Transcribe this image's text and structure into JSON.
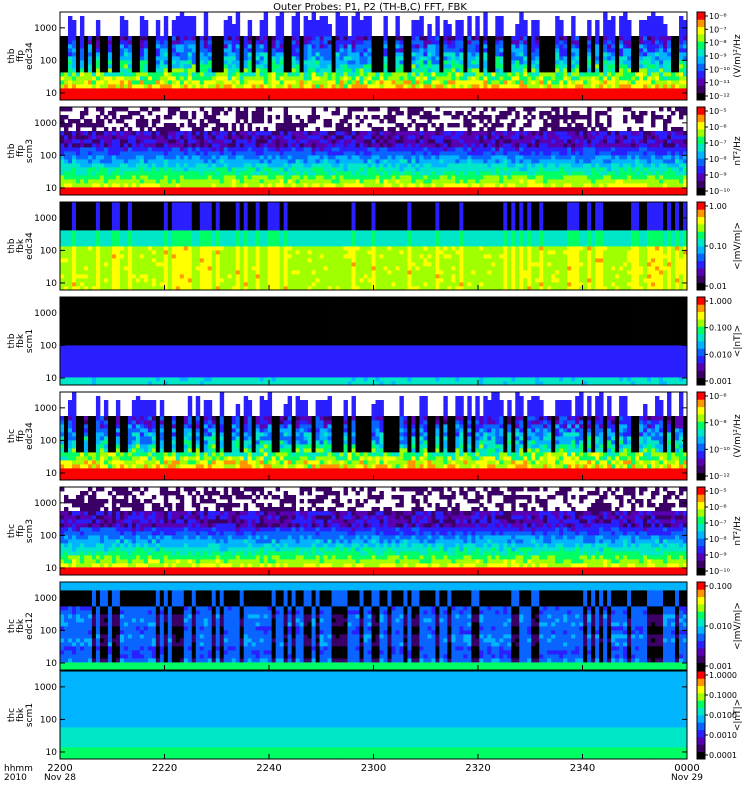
{
  "chart_data": {
    "type": "heatmap",
    "title": "Outer Probes: P1, P2 (TH-B,C) FFT, FBK",
    "x_axis": {
      "row_labels": [
        "hhmm",
        "2010"
      ],
      "ticks": [
        "2200",
        "2220",
        "2240",
        "2300",
        "2320",
        "2340",
        "0000"
      ],
      "date_labels": [
        {
          "at": "2200",
          "text": "Nov 28"
        },
        {
          "at": "0000",
          "text": "Nov 29"
        }
      ]
    },
    "panels": [
      {
        "ylabel": [
          "thb",
          "ffp",
          "edc34"
        ],
        "yscale": "log",
        "yticks": [
          "10",
          "100",
          "1000"
        ],
        "colorbar": {
          "scale": "log",
          "ticks": [
            "10⁻¹²",
            "10⁻¹¹",
            "10⁻¹⁰",
            "10⁻⁹",
            "10⁻⁸",
            "10⁻⁷",
            "10⁻⁶"
          ],
          "label": "(V/m)²/Hz"
        },
        "style": "ffp_edc"
      },
      {
        "ylabel": [
          "thb",
          "ffp",
          "scm3"
        ],
        "yscale": "log",
        "yticks": [
          "10",
          "100",
          "1000"
        ],
        "colorbar": {
          "scale": "log",
          "ticks": [
            "10⁻¹⁰",
            "10⁻⁹",
            "10⁻⁸",
            "10⁻⁷",
            "10⁻⁶",
            "10⁻⁵"
          ],
          "label": "nT²/Hz"
        },
        "style": "ffp_scm"
      },
      {
        "ylabel": [
          "thb",
          "fbk",
          "edc34"
        ],
        "yscale": "log",
        "yticks": [
          "10",
          "100",
          "1000"
        ],
        "colorbar": {
          "scale": "log",
          "ticks": [
            "0.01",
            "0.10",
            "1.00"
          ],
          "label": "<|mV/m|>"
        },
        "style": "fbk_edc_b"
      },
      {
        "ylabel": [
          "thb",
          "fbk",
          "scm1"
        ],
        "yscale": "log",
        "yticks": [
          "10",
          "100",
          "1000"
        ],
        "colorbar": {
          "scale": "log",
          "ticks": [
            "0.001",
            "0.010",
            "0.100",
            "1.000"
          ],
          "label": "<|nT|>"
        },
        "style": "fbk_scm_b"
      },
      {
        "ylabel": [
          "thc",
          "ffp",
          "edc34"
        ],
        "yscale": "log",
        "yticks": [
          "10",
          "100",
          "1000"
        ],
        "colorbar": {
          "scale": "log",
          "ticks": [
            "10⁻¹²",
            "10⁻¹⁰",
            "10⁻⁸",
            "10⁻⁶"
          ],
          "label": "(V/m)²/Hz"
        },
        "style": "ffp_edc"
      },
      {
        "ylabel": [
          "thc",
          "ffp",
          "scm3"
        ],
        "yscale": "log",
        "yticks": [
          "10",
          "100",
          "1000"
        ],
        "colorbar": {
          "scale": "log",
          "ticks": [
            "10⁻¹⁰",
            "10⁻⁹",
            "10⁻⁸",
            "10⁻⁷",
            "10⁻⁶",
            "10⁻⁵"
          ],
          "label": "nT²/Hz"
        },
        "style": "ffp_scm"
      },
      {
        "ylabel": [
          "thc",
          "fbk",
          "edc12"
        ],
        "yscale": "log",
        "yticks": [
          "10",
          "100",
          "1000"
        ],
        "colorbar": {
          "scale": "log",
          "ticks": [
            "0.001",
            "0.010",
            "0.100"
          ],
          "label": "<|mV/m|>"
        },
        "style": "fbk_edc_c"
      },
      {
        "ylabel": [
          "thc",
          "fbk",
          "scm1"
        ],
        "yscale": "log",
        "yticks": [
          "10",
          "100",
          "1000"
        ],
        "colorbar": {
          "scale": "log",
          "ticks": [
            "0.0001",
            "0.0010",
            "0.0100",
            "0.1000",
            "1.0000"
          ],
          "label": "<|nT|>"
        },
        "style": "fbk_scm_c"
      }
    ]
  },
  "colors": {
    "colormap": [
      "#000000",
      "#3a0066",
      "#5a00b4",
      "#2a1fff",
      "#0a64ff",
      "#00b4ff",
      "#00e6c8",
      "#00ff64",
      "#a0ff00",
      "#ffff00",
      "#ff9600",
      "#ff0000"
    ]
  }
}
